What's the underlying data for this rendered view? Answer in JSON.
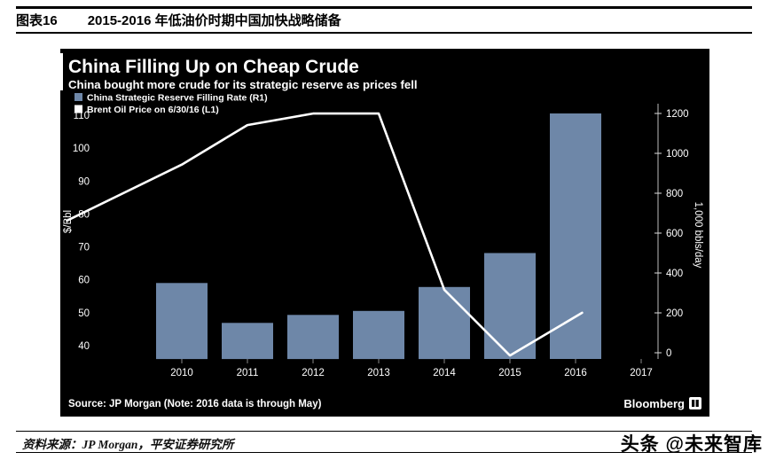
{
  "page": {
    "figure_label": "图表16",
    "figure_title": "2015-2016 年低油价时期中国加快战略储备",
    "source_line": "资料来源：JP Morgan，平安证券研究所",
    "watermark": "头条 @未来智库"
  },
  "chart_data": {
    "type": "combo_bar_line",
    "title": "China Filling Up on Cheap Crude",
    "subtitle": "China bought more crude for its strategic reserve as prices fell",
    "source_note": "Source: JP Morgan (Note: 2016 data is through May)",
    "brand": "Bloomberg",
    "background_color": "#000000",
    "legend_position": "top-left",
    "x_tick_labels": [
      "2010",
      "2011",
      "2012",
      "2013",
      "2014",
      "2015",
      "2016",
      "2017"
    ],
    "left_axis": {
      "label": "$/Bbl",
      "ticks": [
        40,
        50,
        60,
        70,
        80,
        90,
        100,
        110
      ]
    },
    "right_axis": {
      "label": "1,000 bbls/day",
      "ticks": [
        0,
        200,
        400,
        600,
        800,
        1000,
        1200
      ]
    },
    "series": [
      {
        "name": "China Strategic Reserve Filling Rate (R1)",
        "type": "bar",
        "axis": "right",
        "color": "#6e87a8",
        "x": [
          2010,
          2011,
          2012,
          2013,
          2014,
          2015,
          2016
        ],
        "values": [
          350,
          150,
          190,
          210,
          330,
          500,
          1200
        ]
      },
      {
        "name": "Brent Oil Price on 6/30/16 (L1)",
        "type": "line",
        "axis": "left",
        "color": "#ffffff",
        "points": [
          [
            2008.25,
            78
          ],
          [
            2010,
            95
          ],
          [
            2011,
            107
          ],
          [
            2012,
            110.5
          ],
          [
            2013,
            110.5
          ],
          [
            2014,
            57
          ],
          [
            2015,
            37
          ],
          [
            2016.1,
            50
          ]
        ]
      }
    ]
  }
}
